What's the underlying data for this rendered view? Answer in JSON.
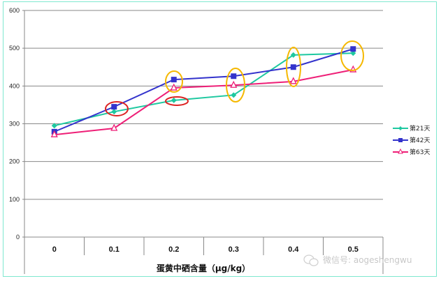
{
  "chart_data": {
    "type": "line",
    "title": "",
    "xlabel": "蛋黄中硒含量（μg/kg）",
    "ylabel": "",
    "categories": [
      "0",
      "0.1",
      "0.2",
      "0.3",
      "0.4",
      "0.5"
    ],
    "ylim": [
      0,
      600
    ],
    "yticks": [
      0,
      100,
      200,
      300,
      400,
      500,
      600
    ],
    "grid": true,
    "legend_position": "right",
    "series": [
      {
        "name": "第21天",
        "color": "#1ec8a0",
        "marker": "diamond",
        "values": [
          295,
          332,
          362,
          376,
          482,
          487
        ]
      },
      {
        "name": "第42天",
        "color": "#3333cc",
        "marker": "square",
        "values": [
          279,
          345,
          417,
          426,
          450,
          498
        ]
      },
      {
        "name": "第63天",
        "color": "#ee1f77",
        "marker": "triangle-open",
        "values": [
          271,
          288,
          395,
          402,
          412,
          443
        ]
      }
    ],
    "annotations": [
      {
        "type": "ellipse",
        "color": "#dd2222",
        "category": "0.1",
        "series": "第42天"
      },
      {
        "type": "ellipse",
        "color": "#dd2222",
        "category": "0.2",
        "series": "第21天"
      },
      {
        "type": "ellipse",
        "color": "#f5b800",
        "category": "0.2",
        "series": "第42天/第63天"
      },
      {
        "type": "ellipse",
        "color": "#f5b800",
        "category": "0.3",
        "series": "all"
      },
      {
        "type": "ellipse",
        "color": "#f5b800",
        "category": "0.4",
        "series": "all"
      },
      {
        "type": "ellipse",
        "color": "#f5b800",
        "category": "0.5",
        "series": "all"
      }
    ]
  },
  "legend": {
    "items": [
      {
        "label": "第21天"
      },
      {
        "label": "第42天"
      },
      {
        "label": "第63天"
      }
    ]
  },
  "watermark": {
    "icon": "wechat-icon",
    "text": "微信号: aogeshengwu"
  }
}
